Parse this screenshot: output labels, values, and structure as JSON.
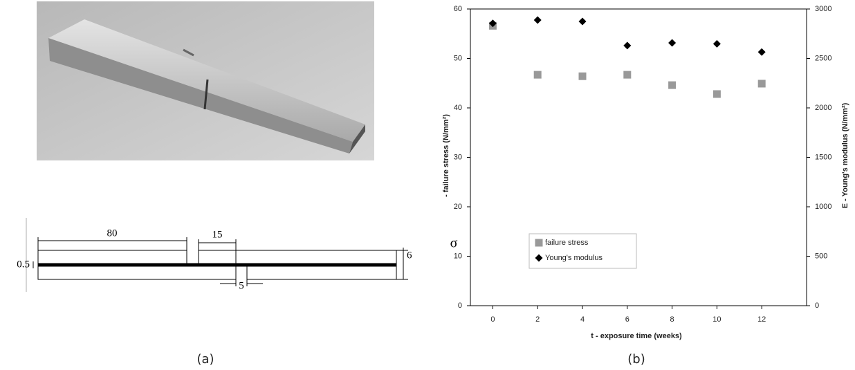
{
  "panel_a": {
    "caption": "(a)",
    "dimensions": {
      "length": "80",
      "gap_offset": "15",
      "layer": "0.5",
      "height": "6",
      "notch": "5"
    }
  },
  "panel_b": {
    "caption": "(b)"
  },
  "chart_data": {
    "type": "scatter",
    "xlabel": "t - exposure time (weeks)",
    "ylabel_symbol": "σ",
    "ylabel": "- failure stress (N/mm²)",
    "y2label": "E - Young's modulus (N/mm²)",
    "x": [
      0,
      2,
      4,
      6,
      8,
      10,
      12
    ],
    "series": [
      {
        "name": "failure stress",
        "color": "#999999",
        "marker": "square",
        "values": [
          56.6,
          46.7,
          46.4,
          46.7,
          44.6,
          42.8,
          44.9
        ]
      },
      {
        "name": "Young's modulus",
        "color": "#000000",
        "marker": "diamond",
        "axis": "y2",
        "values": [
          2855,
          2888,
          2874,
          2630,
          2657,
          2648,
          2565
        ]
      }
    ],
    "xlim": [
      -1,
      14
    ],
    "xticks": [
      0,
      2,
      4,
      6,
      8,
      10,
      12
    ],
    "ylim": [
      0,
      60
    ],
    "yticks": [
      0,
      10,
      20,
      30,
      40,
      50,
      60
    ],
    "y2lim": [
      0,
      3000
    ],
    "y2ticks": [
      0,
      500,
      1000,
      1500,
      2000,
      2500,
      3000
    ],
    "legend": "lower left"
  }
}
